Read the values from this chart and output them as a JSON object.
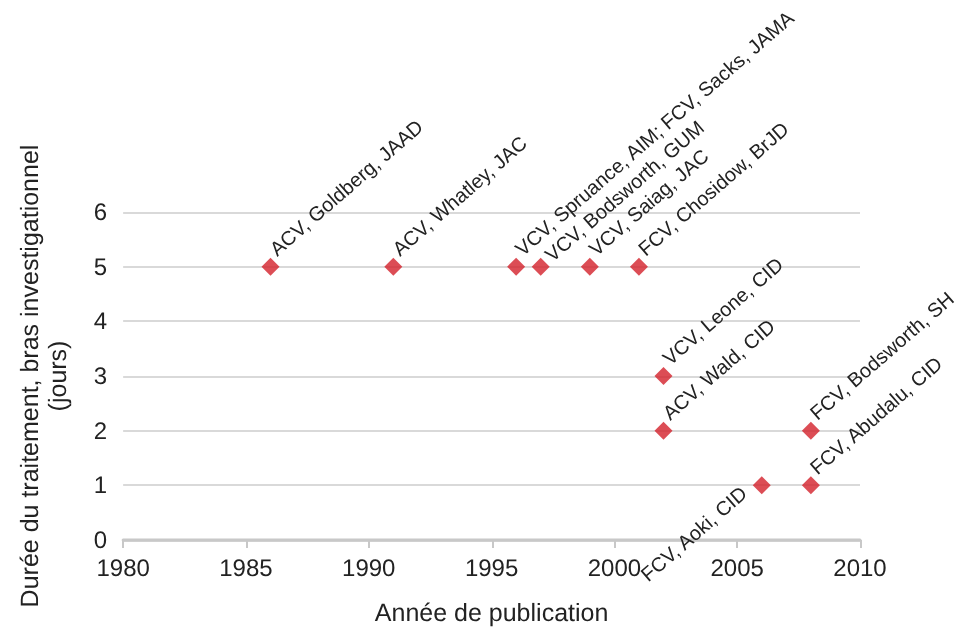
{
  "chart_data": {
    "type": "scatter",
    "xlabel": "Année de publication",
    "ylabel": "Durée du traitement, bras investigationnel\n(jours)",
    "x": [
      1986,
      1991,
      1996,
      1997,
      1999,
      2001,
      2002,
      2002,
      2006,
      2008,
      2008
    ],
    "values": [
      5,
      5,
      5,
      5,
      5,
      5,
      3,
      2,
      1,
      2,
      1
    ],
    "color": "#d3202a",
    "marker": "diamond",
    "xlim": [
      1980,
      2010
    ],
    "xticks": [
      1980,
      1985,
      1990,
      1995,
      2000,
      2005,
      2010
    ],
    "ylim": [
      0,
      6
    ],
    "yticks": [
      0,
      1,
      2,
      3,
      4,
      5,
      6
    ],
    "grid": "y",
    "annotations": [
      {
        "text": "ACV, Goldberg, JAAD",
        "x": 1986,
        "y": 5
      },
      {
        "text": "ACV, Whatley, JAC",
        "x": 1991,
        "y": 5
      },
      {
        "text": "VCV, Spruance, AIM; FCV, Sacks, JAMA",
        "x": 1996,
        "y": 5
      },
      {
        "text": "VCV, Bodsworth, GUM",
        "x": 1997,
        "y": 5
      },
      {
        "text": "VCV, Saiag, JAC",
        "x": 1999,
        "y": 5
      },
      {
        "text": "FCV, Chosidow, BrJD",
        "x": 2001,
        "y": 5
      },
      {
        "text": "VCV, Leone, CID",
        "x": 2002,
        "y": 3
      },
      {
        "text": "ACV, Wald, CID",
        "x": 2002,
        "y": 2
      },
      {
        "text": "FCV, Aoki, CID",
        "x": 2006,
        "y": 1
      },
      {
        "text": "FCV, Bodsworth, SH",
        "x": 2008,
        "y": 2
      },
      {
        "text": "FCV, Abudalu, CID",
        "x": 2008,
        "y": 1
      }
    ]
  }
}
